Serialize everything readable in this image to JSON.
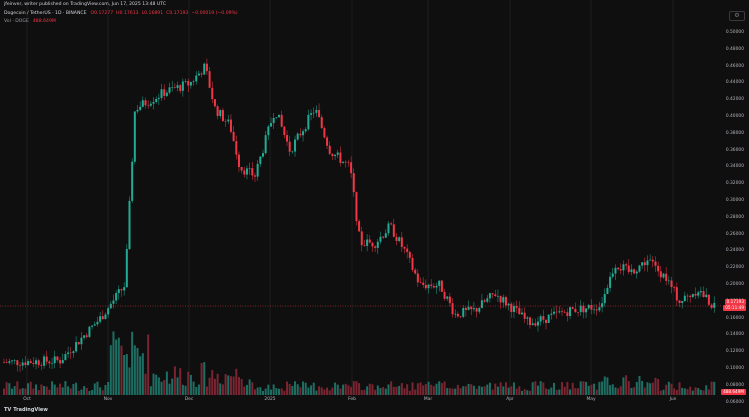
{
  "header": {
    "publication_line": "jfeinver, writer published on TradingView.com, Jun 17, 2025 13:48 UTC",
    "symbol": "Dogecoin / TetherUS · 1D · BINANCE",
    "ohlc": [
      "O0.17277",
      "H0.17613",
      "L0.16891",
      "C0.17193",
      "−0.00019 (−0.09%)"
    ],
    "volume_label": "Vol · DOGE",
    "volume_value": "488.649M"
  },
  "price_axis": {
    "labels": [
      "0.50000",
      "0.48000",
      "0.46000",
      "0.44000",
      "0.42000",
      "0.40000",
      "0.38000",
      "0.36000",
      "0.34000",
      "0.32000",
      "0.30000",
      "0.28000",
      "0.26000",
      "0.24000",
      "0.22000",
      "0.20000",
      "0.18000",
      "0.16000",
      "0.14000",
      "0.12000",
      "0.10000",
      "0.08000",
      "0.06000"
    ],
    "last_price_tag": "0.17193",
    "countdown_tag": "05:11:49",
    "volume_tag": "488.649M"
  },
  "time_axis": {
    "labels": [
      "Oct",
      "Nov",
      "Dec",
      "2025",
      "Feb",
      "Mar",
      "Apr",
      "May",
      "Jun"
    ]
  },
  "branding": {
    "logo_mark": "TV",
    "logo_text": "TradingView"
  },
  "colors": {
    "up": "#22ab94",
    "down": "#f23645",
    "background": "#0f0f0f",
    "up_volume": "#1e6f63",
    "down_volume": "#7a2531"
  },
  "chart_data": {
    "type": "candlestick",
    "symbol": "Dogecoin / TetherUS",
    "interval": "1D",
    "y_range": [
      0.06,
      0.5
    ],
    "approximate_closing_path": [
      {
        "x": "Oct",
        "y": 0.108
      },
      {
        "x": "Nov",
        "y": 0.155
      },
      {
        "x": "Dec",
        "y": 0.43
      },
      {
        "x": "2025",
        "y": 0.33
      },
      {
        "x": "Feb",
        "y": 0.25
      },
      {
        "x": "Mar",
        "y": 0.195
      },
      {
        "x": "Apr",
        "y": 0.165
      },
      {
        "x": "May",
        "y": 0.175
      },
      {
        "x": "Jun",
        "y": 0.185
      }
    ],
    "last_close": 0.17193
  }
}
